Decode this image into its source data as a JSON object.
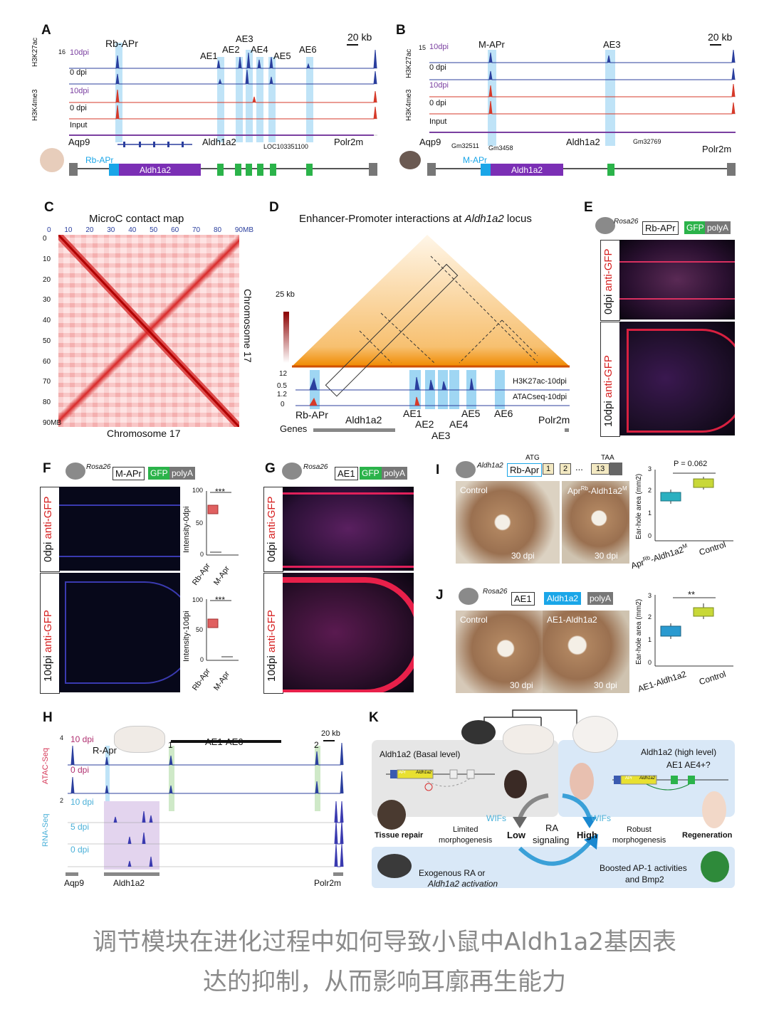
{
  "panels": {
    "A": {
      "label": "A",
      "scale": "20 kb",
      "regions": [
        "Rb-APr",
        "AE1",
        "AE2",
        "AE3",
        "AE4",
        "AE5",
        "AE6"
      ],
      "marks": [
        "H3K27ac",
        "H3K4me3"
      ],
      "tracks": [
        "10dpi",
        "0 dpi",
        "10dpi",
        "0 dpi",
        "Input"
      ],
      "ymax": "16",
      "y0": "0",
      "genes": [
        "Aqp9",
        "Aldh1a2",
        "LOC103351100",
        "Polr2m"
      ],
      "construct_promoter": "Rb-APr",
      "construct_gene": "Aldh1a2"
    },
    "B": {
      "label": "B",
      "scale": "20 kb",
      "regions": [
        "M-APr",
        "AE3"
      ],
      "marks": [
        "H3K27ac",
        "H3K4me3"
      ],
      "tracks": [
        "10dpi",
        "0 dpi",
        "10dpi",
        "0 dpi",
        "Input"
      ],
      "ymax": "15",
      "y0": "0",
      "genes": [
        "Aqp9",
        "Gm32511",
        "Gm3458",
        "Aldh1a2",
        "Gm32769",
        "Polr2m"
      ],
      "construct_promoter": "M-APr",
      "construct_gene": "Aldh1a2"
    },
    "C": {
      "label": "C",
      "title": "MicroC contact map",
      "ticks_top": [
        "0",
        "10",
        "20",
        "30",
        "40",
        "50",
        "60",
        "70",
        "80",
        "90MB"
      ],
      "ticks_left": [
        "0",
        "10",
        "20",
        "30",
        "40",
        "50",
        "60",
        "70",
        "80",
        "90MB"
      ],
      "xlabel": "Chromosome 17",
      "ylabel": "Chromosome 17"
    },
    "D": {
      "label": "D",
      "title_pre": "Enhancer-Promoter interactions at ",
      "title_gene": "Aldh1a2",
      "title_post": " locus",
      "scale": "25 kb",
      "tracks": [
        "H3K27ac-10dpi",
        "ATACseq-10dpi"
      ],
      "yvals": [
        "12",
        "0.5",
        "1.2",
        "0"
      ],
      "regions": [
        "Rb-APr",
        "Aldh1a2",
        "AE1",
        "AE2",
        "AE3",
        "AE4",
        "AE5",
        "AE6",
        "Polr2m"
      ],
      "genes_label": "Genes"
    },
    "E": {
      "label": "E",
      "rosa": "Rosa26",
      "promoter": "Rb-APr",
      "reporter": "GFP",
      "polyA": "polyA",
      "rows": [
        {
          "day": "0dpi",
          "stain": "anti-GFP"
        },
        {
          "day": "10dpi",
          "stain": "anti-GFP"
        }
      ]
    },
    "F": {
      "label": "F",
      "rosa": "Rosa26",
      "promoter": "M-APr",
      "reporter": "GFP",
      "polyA": "polyA",
      "rows": [
        {
          "day": "0dpi",
          "stain": "anti-GFP"
        },
        {
          "day": "10dpi",
          "stain": "anti-GFP"
        }
      ],
      "plots": [
        {
          "ylabel": "Intensity-0dpi",
          "ticks": [
            "100",
            "50",
            "0"
          ],
          "sig": "***",
          "cats": [
            "Rb-Apr",
            "M-Apr"
          ]
        },
        {
          "ylabel": "Intensity-10dpi",
          "ticks": [
            "100",
            "50",
            "0"
          ],
          "sig": "***",
          "cats": [
            "Rb-Apr",
            "M-Apr"
          ]
        }
      ]
    },
    "G": {
      "label": "G",
      "rosa": "Rosa26",
      "promoter": "AE1",
      "reporter": "GFP",
      "polyA": "polyA",
      "rows": [
        {
          "day": "0dpi",
          "stain": "anti-GFP"
        },
        {
          "day": "10dpi",
          "stain": "anti-GFP"
        }
      ]
    },
    "I": {
      "label": "I",
      "locus": "Aldh1a2",
      "insert": "Rb-Apr",
      "atg": "ATG",
      "taa": "TAA",
      "exons": [
        "1",
        "2",
        "...",
        "13"
      ],
      "photos": [
        {
          "label": "Control",
          "day": "30 dpi"
        },
        {
          "label": "Apr",
          "day": "30 dpi"
        }
      ],
      "photo2_label": {
        "a": "Apr",
        "sup1": "Rb",
        "b": "-Aldh1a2",
        "sup2": "M"
      },
      "plot": {
        "ylabel": "Ear-hole area (mm2)",
        "ticks": [
          "3",
          "2",
          "1",
          "0"
        ],
        "p": "P = 0.062",
        "cats": [
          "Apr",
          "Control"
        ]
      }
    },
    "J": {
      "label": "J",
      "rosa": "Rosa26",
      "promoter": "AE1",
      "gene": "Aldh1a2",
      "polyA": "polyA",
      "photos": [
        {
          "label": "Control",
          "day": "30 dpi"
        },
        {
          "label": "AE1-Aldh1a2",
          "day": "30 dpi"
        }
      ],
      "plot": {
        "ylabel": "Ear-hole area (mm2)",
        "ticks": [
          "3",
          "2",
          "1",
          "0"
        ],
        "sig": "**",
        "cats": [
          "AE1-Aldh1a2",
          "Control"
        ]
      }
    },
    "H": {
      "label": "H",
      "scale": "20 kb",
      "promoter": "R-Apr",
      "region": "AE1-AE6",
      "sites": [
        "1",
        "2"
      ],
      "atac": {
        "name": "ATAC-Seq",
        "tracks": [
          "10 dpi",
          "0 dpi"
        ],
        "ymax": "4",
        "y0": "0"
      },
      "rna": {
        "name": "RNA-Seq",
        "tracks": [
          "10 dpi",
          "5 dpi",
          "0 dpi"
        ],
        "ymax": "2",
        "y0": "0"
      },
      "genes": [
        "Aqp9",
        "Aldh1a2",
        "Polr2m"
      ]
    },
    "K": {
      "label": "K",
      "left_title": "Aldh1a2 (Basal level)",
      "right_title": "Aldh1a2 (high level)",
      "right_enh": "AE1 AE4+?",
      "apr": "APr",
      "gene": "Aldh1a2",
      "wifs": "WIFs",
      "ra": "RA",
      "signaling": "signaling",
      "low": "Low",
      "high": "High",
      "limited": "Limited",
      "limited2": "morphogenesis",
      "robust": "Robust",
      "robust2": "morphogenesis",
      "tissue_repair": "Tissue repair",
      "regeneration": "Regeneration",
      "exo1": "Exogenous RA or",
      "exo2": "Aldh1a2 activation",
      "boost1": "Boosted AP-1 activities",
      "boost2": "and Bmp2"
    }
  },
  "caption": {
    "line1": "调节模块在进化过程中如何导致小鼠中Aldh1a2基因表",
    "line2": "达的抑制，从而影响耳廓再生能力"
  },
  "colors": {
    "blue_track": "#2b3f9e",
    "red_track": "#d63a2a",
    "purple_track": "#7a3fa0",
    "highlight": "#bfe3f7",
    "green_exon": "#2bb34a",
    "purple_gene": "#7b2fb5",
    "cyan_promoter": "#1aa6e8"
  }
}
